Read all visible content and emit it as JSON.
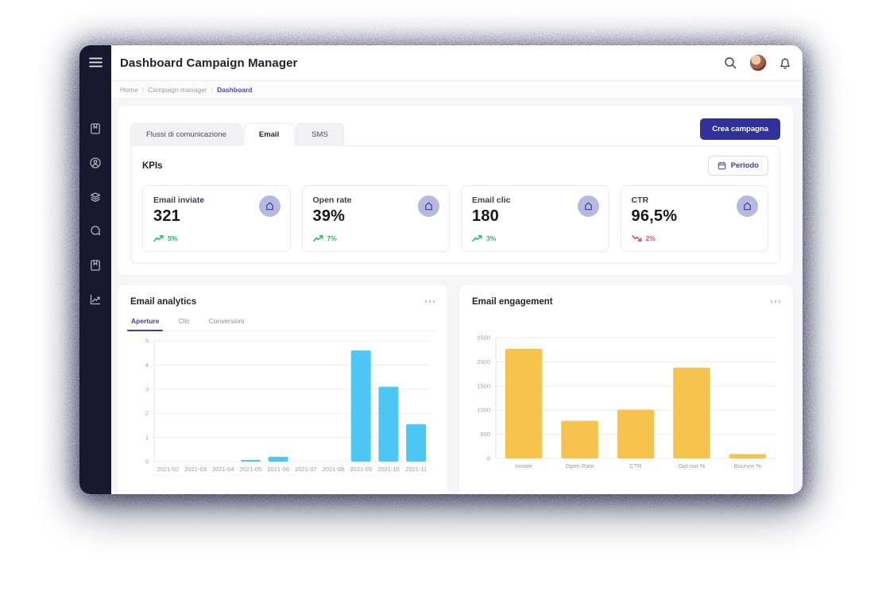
{
  "window": {
    "title": "Dashboard Campaign Manager"
  },
  "header": {
    "icons": [
      "search-icon",
      "avatar",
      "bell-icon"
    ]
  },
  "sidebar": {
    "icons": [
      "menu-icon",
      "book-icon",
      "user-circle-icon",
      "layers-icon",
      "chat-icon",
      "bookmark-icon",
      "chart-line-icon"
    ]
  },
  "breadcrumb": {
    "items": [
      "Home",
      "Campaign manager"
    ],
    "separator": "/",
    "current": "Dashboard"
  },
  "tabs": {
    "flussi": "Flussi di comunicazione",
    "email": "Email",
    "sms": "SMS"
  },
  "actions": {
    "create_button": "Crea campagna",
    "period_button": "Periodo"
  },
  "kpis": {
    "heading": "KPIs",
    "cards": [
      {
        "title": "Email inviate",
        "value": "321",
        "trend": "5%",
        "direction": "up"
      },
      {
        "title": "Open rate",
        "value": "39%",
        "trend": "7%",
        "direction": "up"
      },
      {
        "title": "Email clic",
        "value": "180",
        "trend": "3%",
        "direction": "up"
      },
      {
        "title": "CTR",
        "value": "96,5%",
        "trend": "2%",
        "direction": "down"
      }
    ],
    "badge_icon": "home-icon"
  },
  "analytics_card": {
    "title": "Email analytics",
    "tabs": [
      {
        "label": "Aperture",
        "active": true
      },
      {
        "label": "Clic",
        "active": false
      },
      {
        "label": "Conversioni",
        "active": false
      }
    ]
  },
  "engagement_card": {
    "title": "Email engagement"
  },
  "colors": {
    "sidebar_bg": "#18182f",
    "primary_button": "#31319b",
    "accent_indigo": "#3a3f9c",
    "breadcrumb_active": "#4b44b5",
    "kpi_badge_bg": "#b7b8e2",
    "trend_up": "#1fc05f",
    "trend_down": "#e84b4b",
    "analytics_bars": "#4dc7f6",
    "engagement_bars": "#f6c44e"
  },
  "chart_data": [
    {
      "type": "bar",
      "title": "Email analytics - Aperture",
      "categories": [
        "2021-02",
        "2021-03",
        "2021-04",
        "2021-05",
        "2021-06",
        "2021-07",
        "2021-08",
        "2021-09",
        "2021-10",
        "2021-11"
      ],
      "values": [
        0,
        0,
        0,
        0.07,
        0.2,
        0,
        0,
        4.6,
        3.1,
        1.55
      ],
      "xlabel": "",
      "ylabel": "",
      "ylim": [
        0,
        5
      ],
      "yticks": [
        0,
        1,
        2,
        3,
        4,
        5
      ],
      "grid": true,
      "legend": "none",
      "bar_color": "#4dc7f6",
      "bar_ratio": 0.72
    },
    {
      "type": "bar",
      "title": "Email engagement",
      "categories": [
        "Inviate",
        "Open Rate",
        "CTR",
        "Opt-out %",
        "Bounce %"
      ],
      "values": [
        2270,
        780,
        1010,
        1880,
        90
      ],
      "xlabel": "",
      "ylabel": "",
      "ylim": [
        0,
        2500
      ],
      "yticks": [
        0,
        500,
        1000,
        1500,
        2000,
        2500
      ],
      "grid": true,
      "legend": "none",
      "bar_color": "#f6c44e",
      "bar_ratio": 0.66
    }
  ]
}
